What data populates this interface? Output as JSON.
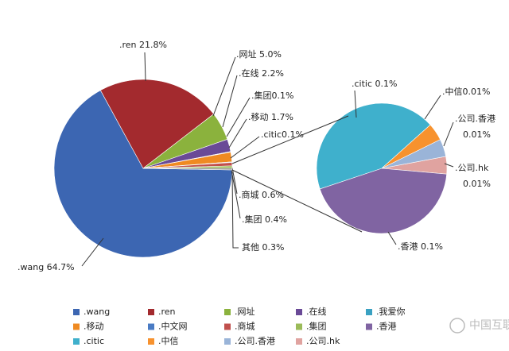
{
  "chart_data": {
    "type": "pie-of-pie",
    "main_pie": [
      {
        "label": [
          ".wang 64.7%"
        ],
        "value": 64.7,
        "color": "#3c66b2"
      },
      {
        "label": [
          ".ren 21.8%"
        ],
        "value": 21.8,
        "color": "#a32a2e"
      },
      {
        "label": [
          ".网址 5.0%"
        ],
        "value": 5.0,
        "color": "#8bb23d"
      },
      {
        "label": [
          ".在线 2.2%"
        ],
        "value": 2.2,
        "color": "#6a4a97"
      },
      {
        "label": [
          ".集团0.1%"
        ],
        "value": 0.1,
        "color": "#3aa1c2"
      },
      {
        "label": [
          ".移动 1.7%"
        ],
        "value": 1.7,
        "color": "#ef8a22"
      },
      {
        "label": [
          ".citic0.1%"
        ],
        "value": 0.1,
        "color": "#4a7bc4"
      },
      {
        "label": [
          ".商城 0.6%"
        ],
        "value": 0.6,
        "color": "#c0504d"
      },
      {
        "label": [
          ".集团 0.4%"
        ],
        "value": 0.4,
        "color": "#9bbb59"
      },
      {
        "label": [
          "其他 0.3%"
        ],
        "value": 0.3,
        "color": "#8a8a8a"
      }
    ],
    "second_pie": [
      {
        "label": [
          ".公司.hk",
          "0.01%"
        ],
        "value": 0.01,
        "color": "#e0a3a0"
      },
      {
        "label": [
          ".香港 0.1%"
        ],
        "value": 0.1,
        "color": "#8064a2"
      },
      {
        "label": [
          ".citic 0.1%"
        ],
        "value": 0.1,
        "color": "#3fb0cc"
      },
      {
        "label": [
          ".中信0.01%"
        ],
        "value": 0.01,
        "color": "#f7922e"
      },
      {
        "label": [
          ".公司.香港",
          "0.01%"
        ],
        "value": 0.01,
        "color": "#9ab4d8"
      }
    ],
    "legend": [
      {
        "name": ".wang",
        "color": "#3c66b2"
      },
      {
        "name": ".ren",
        "color": "#a32a2e"
      },
      {
        "name": ".网址",
        "color": "#8bb23d"
      },
      {
        "name": ".在线",
        "color": "#6a4a97"
      },
      {
        "name": ".我爱你",
        "color": "#3aa1c2"
      },
      {
        "name": ".移动",
        "color": "#ef8a22"
      },
      {
        "name": ".中文网",
        "color": "#4a7bc4"
      },
      {
        "name": ".商城",
        "color": "#c0504d"
      },
      {
        "name": ".集团",
        "color": "#9bbb59"
      },
      {
        "name": ".香港",
        "color": "#8064a2"
      },
      {
        "name": ".citic",
        "color": "#3fb0cc"
      },
      {
        "name": ".中信",
        "color": "#f7922e"
      },
      {
        "name": ".公司.香港",
        "color": "#9ab4d8"
      },
      {
        "name": ".公司.hk",
        "color": "#e0a3a0"
      }
    ],
    "watermark": "中国互联网协会"
  }
}
